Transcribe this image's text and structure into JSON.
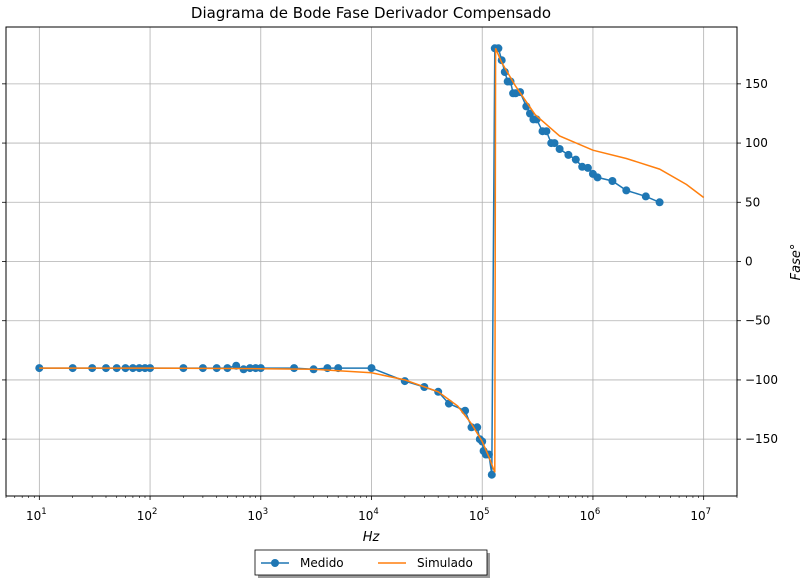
{
  "chart_data": {
    "type": "line",
    "title": "Diagrama de Bode Fase Derivador Compensado",
    "xlabel": "Hz",
    "ylabel": "Fase°",
    "x_scale": "log",
    "xlim": [
      5,
      20000000
    ],
    "ylim": [
      -198,
      198
    ],
    "y_axis_side": "right",
    "grid": true,
    "legend_position": "bottom-center",
    "x_ticks": [
      10,
      100,
      1000,
      10000,
      100000,
      1000000,
      10000000
    ],
    "x_tick_labels": [
      {
        "base": "10",
        "exp": "1"
      },
      {
        "base": "10",
        "exp": "2"
      },
      {
        "base": "10",
        "exp": "3"
      },
      {
        "base": "10",
        "exp": "4"
      },
      {
        "base": "10",
        "exp": "5"
      },
      {
        "base": "10",
        "exp": "6"
      },
      {
        "base": "10",
        "exp": "7"
      }
    ],
    "y_ticks": [
      -150,
      -100,
      -50,
      0,
      50,
      100,
      150
    ],
    "y_tick_labels": [
      "−150",
      "−100",
      "−50",
      "0",
      "50",
      "100",
      "150"
    ],
    "series": [
      {
        "name": "Medido",
        "color": "#1f77b4",
        "marker": "circle",
        "points": [
          [
            10,
            -90
          ],
          [
            20,
            -90
          ],
          [
            30,
            -90
          ],
          [
            40,
            -90
          ],
          [
            50,
            -90
          ],
          [
            60,
            -90
          ],
          [
            70,
            -90
          ],
          [
            80,
            -90
          ],
          [
            90,
            -90
          ],
          [
            100,
            -90
          ],
          [
            200,
            -90
          ],
          [
            300,
            -90
          ],
          [
            400,
            -90
          ],
          [
            500,
            -90
          ],
          [
            600,
            -88
          ],
          [
            700,
            -91
          ],
          [
            800,
            -90
          ],
          [
            900,
            -90
          ],
          [
            1000,
            -90
          ],
          [
            2000,
            -90
          ],
          [
            3000,
            -91
          ],
          [
            4000,
            -90
          ],
          [
            5000,
            -90
          ],
          [
            10000,
            -90
          ],
          [
            20000,
            -101
          ],
          [
            30000,
            -106
          ],
          [
            40000,
            -110
          ],
          [
            50000,
            -120
          ],
          [
            70000,
            -126
          ],
          [
            80000,
            -140
          ],
          [
            90000,
            -140
          ],
          [
            95000,
            -150
          ],
          [
            100000,
            -152
          ],
          [
            103000,
            -160
          ],
          [
            108000,
            -163
          ],
          [
            115000,
            -163
          ],
          [
            122000,
            -180
          ],
          [
            130000,
            180
          ],
          [
            140000,
            180
          ],
          [
            150000,
            170
          ],
          [
            160000,
            160
          ],
          [
            170000,
            152
          ],
          [
            180000,
            152
          ],
          [
            190000,
            142
          ],
          [
            200000,
            142
          ],
          [
            220000,
            143
          ],
          [
            250000,
            131
          ],
          [
            270000,
            125
          ],
          [
            290000,
            120
          ],
          [
            310000,
            120
          ],
          [
            350000,
            110
          ],
          [
            380000,
            110
          ],
          [
            420000,
            100
          ],
          [
            450000,
            100
          ],
          [
            500000,
            95
          ],
          [
            600000,
            90
          ],
          [
            700000,
            86
          ],
          [
            800000,
            80
          ],
          [
            900000,
            79
          ],
          [
            1000000,
            74
          ],
          [
            1100000,
            71
          ],
          [
            1500000,
            68
          ],
          [
            2000000,
            60
          ],
          [
            3000000,
            55
          ],
          [
            4000000,
            50
          ]
        ]
      },
      {
        "name": "Simulado",
        "color": "#ff7f0e",
        "marker": "none",
        "points": [
          [
            10,
            -90
          ],
          [
            100,
            -90
          ],
          [
            1000,
            -90.5
          ],
          [
            3000,
            -91
          ],
          [
            10000,
            -94
          ],
          [
            20000,
            -100
          ],
          [
            40000,
            -110
          ],
          [
            60000,
            -122
          ],
          [
            80000,
            -137
          ],
          [
            100000,
            -152
          ],
          [
            115000,
            -165
          ],
          [
            125000,
            -174
          ],
          [
            130000,
            -178
          ],
          [
            132000,
            180
          ],
          [
            150000,
            168
          ],
          [
            200000,
            148
          ],
          [
            300000,
            124
          ],
          [
            500000,
            106
          ],
          [
            1000000,
            94
          ],
          [
            2000000,
            87
          ],
          [
            4000000,
            78
          ],
          [
            7000000,
            65
          ],
          [
            10000000,
            54
          ]
        ]
      }
    ]
  }
}
